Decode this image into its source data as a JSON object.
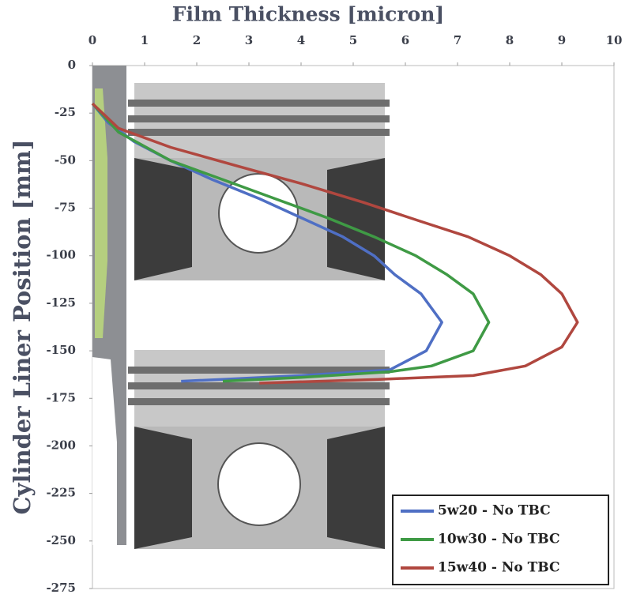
{
  "chart_data": {
    "type": "line",
    "x_label": "Film Thickness [micron]",
    "y_label": "Cylinder Liner Position [mm]",
    "xlim": [
      0,
      10
    ],
    "xticks": [
      0,
      1,
      2,
      3,
      4,
      5,
      6,
      7,
      8,
      9,
      10
    ],
    "ylim": [
      -275,
      0
    ],
    "yticks": [
      0,
      -25,
      -50,
      -75,
      -100,
      -125,
      -150,
      -175,
      -200,
      -225,
      -250,
      -275
    ],
    "legend": "lower right",
    "series": [
      {
        "name": "5w20 - No TBC",
        "color": "#4f6fc4",
        "x": [
          0,
          0.3,
          0.8,
          1.5,
          2.3,
          3.2,
          4.0,
          4.8,
          5.4,
          5.8,
          6.3,
          6.7,
          6.4,
          5.7,
          4.0,
          2.5,
          1.7
        ],
        "values": [
          -20,
          -30,
          -40,
          -50,
          -60,
          -70,
          -80,
          -90,
          -100,
          -110,
          -120,
          -135,
          -150,
          -160,
          -163,
          -165,
          -166
        ]
      },
      {
        "name": "10w30 - No TBC",
        "color": "#3f9a45",
        "x": [
          0,
          0.5,
          1.5,
          2.5,
          3.5,
          4.5,
          5.4,
          6.2,
          6.8,
          7.3,
          7.6,
          7.3,
          6.5,
          5.7,
          4.0,
          2.5
        ],
        "values": [
          -20,
          -35,
          -50,
          -60,
          -70,
          -80,
          -90,
          -100,
          -110,
          -120,
          -135,
          -150,
          -158,
          -161,
          -164,
          -166
        ]
      },
      {
        "name": "15w40 - No TBC",
        "color": "#b0473f",
        "x": [
          0,
          0.5,
          1.5,
          2.8,
          4.0,
          5.2,
          6.3,
          7.2,
          8.0,
          8.6,
          9.0,
          9.3,
          9.0,
          8.3,
          7.3,
          5.5,
          3.2
        ],
        "values": [
          -20,
          -33,
          -43,
          -53,
          -62,
          -72,
          -82,
          -90,
          -100,
          -110,
          -120,
          -135,
          -148,
          -158,
          -163,
          -165,
          -167
        ]
      }
    ]
  }
}
